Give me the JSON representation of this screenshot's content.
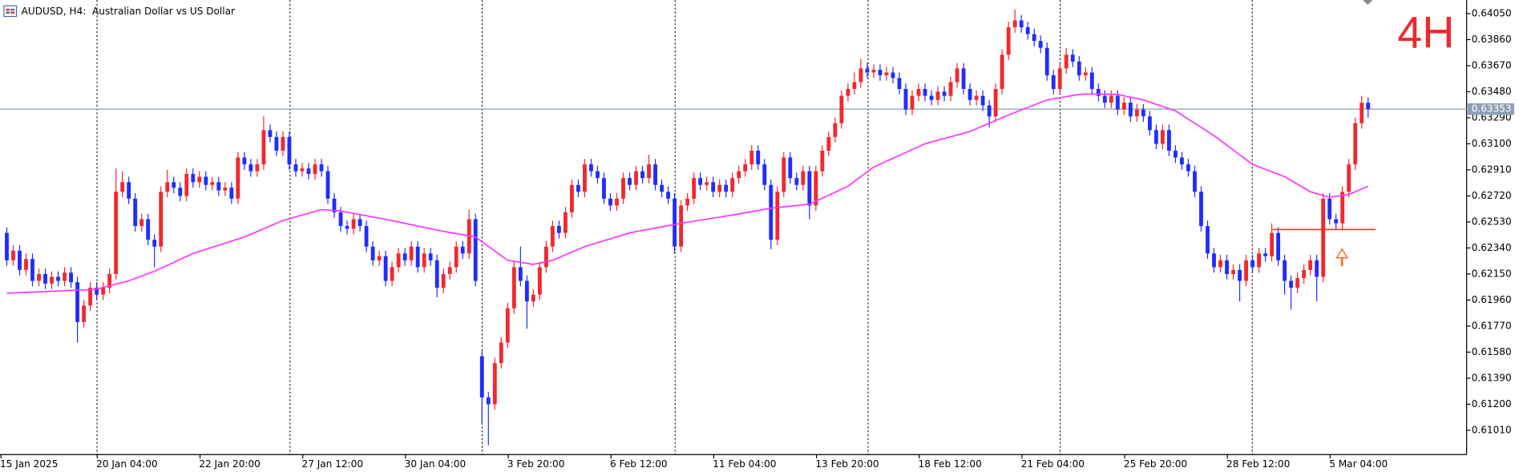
{
  "chart_data": {
    "type": "candlestick",
    "title": "AUDUSD, H4:  Australian Dollar vs US Dollar",
    "annotation": "4H",
    "bull_color": "#f2282d",
    "bear_color": "#1f2dff",
    "categories": [
      "15 Jan 2025",
      null,
      null,
      null,
      null,
      null,
      null,
      null,
      null,
      null,
      null,
      null,
      null,
      null,
      null,
      "20 Jan 04:00",
      null,
      null,
      null,
      null,
      null,
      null,
      null,
      null,
      null,
      null,
      null,
      null,
      null,
      null,
      null,
      "22 Jan 20:00",
      null,
      null,
      null,
      null,
      null,
      null,
      null,
      null,
      null,
      null,
      null,
      null,
      null,
      null,
      null,
      "27 Jan 12:00",
      null,
      null,
      null,
      null,
      null,
      null,
      null,
      null,
      null,
      null,
      null,
      null,
      null,
      null,
      null,
      "30 Jan 04:00",
      null,
      null,
      null,
      null,
      null,
      null,
      null,
      null,
      null,
      null,
      null,
      null,
      null,
      null,
      null,
      "3 Feb 20:00",
      null,
      null,
      null,
      null,
      null,
      null,
      null,
      null,
      null,
      null,
      null,
      null,
      null,
      null,
      null,
      "6 Feb 12:00",
      null,
      null,
      null,
      null,
      null,
      null,
      null,
      null,
      null,
      null,
      null,
      null,
      null,
      null,
      null,
      "11 Feb 04:00",
      null,
      null,
      null,
      null,
      null,
      null,
      null,
      null,
      null,
      null,
      null,
      null,
      null,
      null,
      null,
      "13 Feb 20:00",
      null,
      null,
      null,
      null,
      null,
      null,
      null,
      null,
      null,
      null,
      null,
      null,
      null,
      null,
      null,
      "18 Feb 12:00",
      null,
      null,
      null,
      null,
      null,
      null,
      null,
      null,
      null,
      null,
      null,
      null,
      null,
      null,
      null,
      "21 Feb 04:00",
      null,
      null,
      null,
      null,
      null,
      null,
      null,
      null,
      null,
      null,
      null,
      null,
      null,
      null,
      null,
      "25 Feb 20:00",
      null,
      null,
      null,
      null,
      null,
      null,
      null,
      null,
      null,
      null,
      null,
      null,
      null,
      null,
      null,
      "28 Feb 12:00",
      null,
      null,
      null,
      null,
      null,
      null,
      null,
      null,
      null,
      null,
      null,
      null,
      null,
      null,
      null,
      "5 Mar 04:00",
      null,
      null,
      null,
      null,
      null
    ],
    "open": [
      0.6245,
      0.6225,
      0.6232,
      0.6218,
      0.6226,
      0.621,
      0.6215,
      0.6208,
      0.6213,
      0.621,
      0.6216,
      0.6209,
      0.618,
      0.6192,
      0.6205,
      0.62,
      0.6205,
      0.6215,
      0.6275,
      0.6282,
      0.627,
      0.625,
      0.6255,
      0.624,
      0.6235,
      0.6275,
      0.6282,
      0.6278,
      0.6272,
      0.6288,
      0.6282,
      0.6286,
      0.628,
      0.6282,
      0.6276,
      0.6278,
      0.627,
      0.63,
      0.6295,
      0.629,
      0.6295,
      0.632,
      0.6315,
      0.6305,
      0.6315,
      0.6295,
      0.629,
      0.6292,
      0.6288,
      0.6295,
      0.629,
      0.627,
      0.626,
      0.625,
      0.6248,
      0.6255,
      0.625,
      0.6235,
      0.6225,
      0.6228,
      0.621,
      0.622,
      0.623,
      0.6225,
      0.6235,
      0.622,
      0.623,
      0.6225,
      0.6205,
      0.6215,
      0.622,
      0.6235,
      0.623,
      0.6255,
      0.6155,
      0.6125,
      0.612,
      0.615,
      0.6165,
      0.619,
      0.622,
      0.621,
      0.6195,
      0.62,
      0.622,
      0.6235,
      0.625,
      0.6245,
      0.626,
      0.628,
      0.6275,
      0.6295,
      0.629,
      0.6285,
      0.627,
      0.6265,
      0.627,
      0.6285,
      0.628,
      0.629,
      0.6285,
      0.6295,
      0.628,
      0.6275,
      0.627,
      0.6235,
      0.6265,
      0.627,
      0.6285,
      0.628,
      0.6282,
      0.6275,
      0.628,
      0.6275,
      0.6285,
      0.629,
      0.6295,
      0.6305,
      0.6295,
      0.628,
      0.624,
      0.6275,
      0.63,
      0.6285,
      0.628,
      0.629,
      0.6265,
      0.629,
      0.6305,
      0.6315,
      0.6325,
      0.6345,
      0.635,
      0.6355,
      0.6365,
      0.6362,
      0.6364,
      0.636,
      0.6362,
      0.6358,
      0.635,
      0.6335,
      0.6345,
      0.635,
      0.6345,
      0.6342,
      0.6348,
      0.6345,
      0.6355,
      0.6365,
      0.635,
      0.6342,
      0.6345,
      0.6338,
      0.633,
      0.635,
      0.6375,
      0.6395,
      0.64,
      0.6395,
      0.639,
      0.6385,
      0.638,
      0.636,
      0.635,
      0.6365,
      0.6375,
      0.637,
      0.636,
      0.6362,
      0.635,
      0.6345,
      0.634,
      0.6345,
      0.6335,
      0.634,
      0.633,
      0.6335,
      0.633,
      0.632,
      0.631,
      0.632,
      0.6305,
      0.63,
      0.6295,
      0.629,
      0.6275,
      0.625,
      0.623,
      0.622,
      0.6225,
      0.6215,
      0.6218,
      0.621,
      0.6225,
      0.622,
      0.623,
      0.6228,
      0.6245,
      0.6225,
      0.621,
      0.6205,
      0.6212,
      0.6218,
      0.6225,
      0.6213,
      0.627,
      0.6255,
      0.6252,
      0.6275,
      0.6295,
      0.6325,
      0.634
    ],
    "high": [
      0.6249,
      0.6236,
      0.6236,
      0.623,
      0.623,
      0.6219,
      0.6219,
      0.6217,
      0.6217,
      0.622,
      0.622,
      0.6213,
      0.6196,
      0.6209,
      0.6209,
      0.6209,
      0.6219,
      0.6292,
      0.629,
      0.6286,
      0.6274,
      0.6259,
      0.6259,
      0.6244,
      0.6279,
      0.6291,
      0.6286,
      0.6282,
      0.6292,
      0.6292,
      0.629,
      0.629,
      0.6286,
      0.6286,
      0.6282,
      0.6282,
      0.6304,
      0.6304,
      0.6299,
      0.6299,
      0.633,
      0.6324,
      0.6319,
      0.6319,
      0.6319,
      0.6299,
      0.6296,
      0.6296,
      0.6299,
      0.6299,
      0.6294,
      0.6274,
      0.6264,
      0.6254,
      0.6259,
      0.6259,
      0.6254,
      0.6239,
      0.6232,
      0.6232,
      0.6224,
      0.6234,
      0.6234,
      0.6239,
      0.6239,
      0.6234,
      0.6234,
      0.6229,
      0.6219,
      0.6224,
      0.6239,
      0.6239,
      0.6262,
      0.6259,
      0.6159,
      0.6129,
      0.6154,
      0.6169,
      0.6194,
      0.6224,
      0.6235,
      0.6214,
      0.6204,
      0.6224,
      0.6239,
      0.6254,
      0.6254,
      0.6264,
      0.6284,
      0.6284,
      0.6299,
      0.6299,
      0.6294,
      0.6289,
      0.6274,
      0.6274,
      0.6289,
      0.6289,
      0.6294,
      0.6294,
      0.6302,
      0.6299,
      0.6284,
      0.6279,
      0.6274,
      0.6269,
      0.6274,
      0.6289,
      0.6289,
      0.6286,
      0.6286,
      0.6284,
      0.6284,
      0.6289,
      0.6294,
      0.6299,
      0.6309,
      0.6309,
      0.6299,
      0.6284,
      0.6279,
      0.6304,
      0.6304,
      0.6289,
      0.6294,
      0.6294,
      0.6294,
      0.6309,
      0.6319,
      0.6329,
      0.6349,
      0.6354,
      0.6362,
      0.6372,
      0.6369,
      0.6368,
      0.6368,
      0.6366,
      0.6366,
      0.6362,
      0.6354,
      0.6349,
      0.6354,
      0.6354,
      0.6349,
      0.6352,
      0.6352,
      0.6359,
      0.6369,
      0.6369,
      0.6354,
      0.6349,
      0.6349,
      0.6342,
      0.6354,
      0.6379,
      0.6399,
      0.6408,
      0.6404,
      0.6399,
      0.6394,
      0.6389,
      0.6384,
      0.6364,
      0.6369,
      0.638,
      0.6379,
      0.6374,
      0.6366,
      0.6366,
      0.6354,
      0.6349,
      0.6349,
      0.6349,
      0.6344,
      0.6344,
      0.6339,
      0.6339,
      0.6334,
      0.6324,
      0.6324,
      0.6324,
      0.6309,
      0.6304,
      0.6299,
      0.6294,
      0.6279,
      0.6254,
      0.6234,
      0.6229,
      0.6229,
      0.6222,
      0.6222,
      0.6229,
      0.6229,
      0.6234,
      0.6234,
      0.6252,
      0.6249,
      0.6229,
      0.6214,
      0.6216,
      0.6222,
      0.6229,
      0.6229,
      0.6274,
      0.6274,
      0.6259,
      0.6279,
      0.6299,
      0.6329,
      0.6345,
      0.6344
    ],
    "low": [
      0.6221,
      0.6221,
      0.6214,
      0.6214,
      0.6206,
      0.6206,
      0.6204,
      0.6204,
      0.6206,
      0.6206,
      0.6205,
      0.6165,
      0.6176,
      0.6188,
      0.6196,
      0.6196,
      0.6201,
      0.6211,
      0.6271,
      0.6266,
      0.6246,
      0.6246,
      0.6236,
      0.622,
      0.6231,
      0.6271,
      0.6274,
      0.6268,
      0.6268,
      0.6278,
      0.6278,
      0.6276,
      0.6276,
      0.6272,
      0.6272,
      0.6266,
      0.6266,
      0.6291,
      0.6286,
      0.6286,
      0.6291,
      0.6311,
      0.6301,
      0.6301,
      0.6291,
      0.6286,
      0.6286,
      0.6284,
      0.6284,
      0.6286,
      0.6266,
      0.6256,
      0.6246,
      0.6244,
      0.6244,
      0.6246,
      0.6231,
      0.6221,
      0.6221,
      0.6206,
      0.6206,
      0.6216,
      0.6221,
      0.6221,
      0.6216,
      0.6216,
      0.6221,
      0.6198,
      0.6201,
      0.6211,
      0.6216,
      0.6226,
      0.6226,
      0.6206,
      0.6105,
      0.609,
      0.6116,
      0.6146,
      0.6161,
      0.6186,
      0.6206,
      0.6175,
      0.6191,
      0.6196,
      0.6216,
      0.6231,
      0.6241,
      0.6241,
      0.6256,
      0.6271,
      0.6271,
      0.6286,
      0.6281,
      0.6266,
      0.6261,
      0.6261,
      0.6266,
      0.6276,
      0.6276,
      0.6281,
      0.6281,
      0.6276,
      0.6271,
      0.6266,
      0.623,
      0.6231,
      0.6261,
      0.6266,
      0.6276,
      0.6276,
      0.6271,
      0.6271,
      0.6271,
      0.6271,
      0.6281,
      0.6286,
      0.6291,
      0.6291,
      0.6276,
      0.6233,
      0.6236,
      0.6271,
      0.6281,
      0.6276,
      0.6276,
      0.6255,
      0.6261,
      0.6286,
      0.6301,
      0.6311,
      0.6321,
      0.6341,
      0.6346,
      0.6351,
      0.6358,
      0.6358,
      0.6356,
      0.6356,
      0.6354,
      0.6346,
      0.6331,
      0.6331,
      0.6341,
      0.6341,
      0.6338,
      0.6338,
      0.6341,
      0.6341,
      0.6351,
      0.6346,
      0.6338,
      0.6338,
      0.6334,
      0.6322,
      0.6326,
      0.6346,
      0.6371,
      0.6391,
      0.6391,
      0.6386,
      0.6381,
      0.6376,
      0.6356,
      0.6346,
      0.6346,
      0.6361,
      0.6366,
      0.6356,
      0.6356,
      0.6346,
      0.6341,
      0.6336,
      0.6336,
      0.6331,
      0.6331,
      0.6326,
      0.6326,
      0.6326,
      0.6316,
      0.6306,
      0.6306,
      0.6301,
      0.6296,
      0.6291,
      0.6286,
      0.6271,
      0.6246,
      0.6226,
      0.6216,
      0.6216,
      0.6211,
      0.6211,
      0.6195,
      0.6206,
      0.6216,
      0.6216,
      0.6224,
      0.6224,
      0.6221,
      0.62,
      0.6189,
      0.6201,
      0.6208,
      0.6214,
      0.6195,
      0.6209,
      0.6251,
      0.6248,
      0.6248,
      0.6271,
      0.6291,
      0.6321,
      0.6329
    ],
    "close": [
      0.6225,
      0.6232,
      0.6218,
      0.6226,
      0.621,
      0.6215,
      0.6208,
      0.6213,
      0.621,
      0.6216,
      0.6209,
      0.618,
      0.6192,
      0.6205,
      0.62,
      0.6205,
      0.6215,
      0.6275,
      0.6282,
      0.627,
      0.625,
      0.6255,
      0.624,
      0.6235,
      0.6275,
      0.6282,
      0.6278,
      0.6272,
      0.6288,
      0.6282,
      0.6286,
      0.628,
      0.6282,
      0.6276,
      0.6278,
      0.627,
      0.63,
      0.6295,
      0.629,
      0.6295,
      0.632,
      0.6315,
      0.6305,
      0.6315,
      0.6295,
      0.629,
      0.6292,
      0.6288,
      0.6295,
      0.629,
      0.627,
      0.626,
      0.625,
      0.6248,
      0.6255,
      0.625,
      0.6235,
      0.6225,
      0.6228,
      0.621,
      0.622,
      0.623,
      0.6225,
      0.6235,
      0.622,
      0.623,
      0.6225,
      0.6205,
      0.6215,
      0.622,
      0.6235,
      0.623,
      0.6255,
      0.621,
      0.6125,
      0.612,
      0.615,
      0.6165,
      0.619,
      0.622,
      0.621,
      0.6195,
      0.62,
      0.622,
      0.6235,
      0.625,
      0.6245,
      0.626,
      0.628,
      0.6275,
      0.6295,
      0.629,
      0.6285,
      0.627,
      0.6265,
      0.627,
      0.6285,
      0.628,
      0.629,
      0.6285,
      0.6295,
      0.628,
      0.6275,
      0.627,
      0.6235,
      0.6265,
      0.627,
      0.6285,
      0.628,
      0.6282,
      0.6275,
      0.628,
      0.6275,
      0.6285,
      0.629,
      0.6295,
      0.6305,
      0.6295,
      0.628,
      0.624,
      0.6275,
      0.63,
      0.6285,
      0.628,
      0.629,
      0.6265,
      0.629,
      0.6305,
      0.6315,
      0.6325,
      0.6345,
      0.635,
      0.6355,
      0.6365,
      0.6362,
      0.6364,
      0.636,
      0.6362,
      0.6358,
      0.635,
      0.6335,
      0.6345,
      0.635,
      0.6345,
      0.6342,
      0.6348,
      0.6345,
      0.6355,
      0.6365,
      0.635,
      0.6342,
      0.6345,
      0.6338,
      0.633,
      0.635,
      0.6375,
      0.6395,
      0.64,
      0.6395,
      0.639,
      0.6385,
      0.638,
      0.636,
      0.635,
      0.6365,
      0.6375,
      0.637,
      0.636,
      0.6362,
      0.635,
      0.6345,
      0.634,
      0.6345,
      0.6335,
      0.634,
      0.633,
      0.6335,
      0.633,
      0.632,
      0.631,
      0.632,
      0.6305,
      0.63,
      0.6295,
      0.629,
      0.6275,
      0.625,
      0.623,
      0.622,
      0.6225,
      0.6215,
      0.6218,
      0.621,
      0.6225,
      0.622,
      0.623,
      0.6228,
      0.6245,
      0.6225,
      0.621,
      0.6205,
      0.6212,
      0.6218,
      0.6225,
      0.6213,
      0.627,
      0.6255,
      0.6252,
      0.6275,
      0.6295,
      0.6325,
      0.634,
      0.63353
    ],
    "ma": {
      "color": "#ff33ff",
      "values": [
        0.6201,
        0.62012,
        0.62014,
        0.62016,
        0.62018,
        0.6202,
        0.62022,
        0.62024,
        0.62026,
        0.62028,
        0.6203,
        0.62032,
        0.62034,
        0.62037,
        0.6204,
        0.62052,
        0.62064,
        0.62076,
        0.62088,
        0.621,
        0.62118,
        0.62135,
        0.62153,
        0.6217,
        0.62192,
        0.62213,
        0.62235,
        0.62257,
        0.62278,
        0.623,
        0.62315,
        0.6233,
        0.62345,
        0.6236,
        0.62375,
        0.6239,
        0.62405,
        0.6242,
        0.6244,
        0.6246,
        0.6248,
        0.625,
        0.6252,
        0.6254,
        0.62553,
        0.62567,
        0.6258,
        0.62593,
        0.62607,
        0.6262,
        0.62617,
        0.62613,
        0.6261,
        0.62601,
        0.62593,
        0.62584,
        0.62575,
        0.62566,
        0.62558,
        0.62549,
        0.6254,
        0.6253,
        0.6252,
        0.6251,
        0.625,
        0.6249,
        0.6248,
        0.6247,
        0.62462,
        0.62453,
        0.62445,
        0.62437,
        0.62428,
        0.6242,
        0.62386,
        0.62352,
        0.62318,
        0.62284,
        0.6225,
        0.62243,
        0.62235,
        0.62228,
        0.6222,
        0.6223,
        0.6224,
        0.6225,
        0.6227,
        0.6229,
        0.6231,
        0.6233,
        0.6235,
        0.62364,
        0.62379,
        0.62393,
        0.62407,
        0.62421,
        0.62436,
        0.6245,
        0.62459,
        0.62468,
        0.62476,
        0.62485,
        0.62494,
        0.62503,
        0.62511,
        0.6252,
        0.62528,
        0.62535,
        0.62543,
        0.6255,
        0.62558,
        0.62565,
        0.62573,
        0.6258,
        0.62588,
        0.62597,
        0.62605,
        0.62613,
        0.62622,
        0.6263,
        0.62635,
        0.6264,
        0.62645,
        0.6265,
        0.62655,
        0.6266,
        0.62682,
        0.62703,
        0.62725,
        0.62747,
        0.62768,
        0.6279,
        0.62825,
        0.6286,
        0.62895,
        0.6293,
        0.62951,
        0.62973,
        0.62994,
        0.63015,
        0.63036,
        0.63058,
        0.63079,
        0.631,
        0.63113,
        0.63126,
        0.63139,
        0.63151,
        0.63164,
        0.63177,
        0.6319,
        0.6321,
        0.6323,
        0.6325,
        0.6327,
        0.6329,
        0.6331,
        0.63328,
        0.63347,
        0.63365,
        0.63383,
        0.63402,
        0.6342,
        0.63428,
        0.63436,
        0.63444,
        0.63452,
        0.6346,
        0.63462,
        0.63463,
        0.63463,
        0.63462,
        0.63461,
        0.6346,
        0.6345,
        0.6344,
        0.6343,
        0.6342,
        0.63404,
        0.63388,
        0.63372,
        0.63356,
        0.6334,
        0.6331,
        0.6328,
        0.6325,
        0.6322,
        0.6319,
        0.6316,
        0.63125,
        0.6309,
        0.63055,
        0.6302,
        0.62985,
        0.6295,
        0.62932,
        0.62914,
        0.62896,
        0.62878,
        0.6286,
        0.62833,
        0.62805,
        0.62778,
        0.6275,
        0.62737,
        0.62723,
        0.6271,
        0.62717,
        0.62723,
        0.6273,
        0.6275,
        0.6277,
        0.6279
      ]
    },
    "current_price": {
      "value": 0.63353,
      "label": "0.63353"
    },
    "level_line": {
      "value": 0.62475,
      "color": "#ff3b1f"
    },
    "ylim": [
      0.60833,
      0.64149
    ],
    "yticks": [
      {
        "value": 0.6405,
        "label": "0.64050"
      },
      {
        "value": 0.6386,
        "label": "0.63860"
      },
      {
        "value": 0.6367,
        "label": "0.63670"
      },
      {
        "value": 0.6348,
        "label": "0.63480"
      },
      {
        "value": 0.6329,
        "label": "0.63290"
      },
      {
        "value": 0.631,
        "label": "0.63100"
      },
      {
        "value": 0.6291,
        "label": "0.62910"
      },
      {
        "value": 0.6272,
        "label": "0.62720"
      },
      {
        "value": 0.6253,
        "label": "0.62530"
      },
      {
        "value": 0.6234,
        "label": "0.62340"
      },
      {
        "value": 0.6215,
        "label": "0.62150"
      },
      {
        "value": 0.6196,
        "label": "0.61960"
      },
      {
        "value": 0.6177,
        "label": "0.61770"
      },
      {
        "value": 0.6158,
        "label": "0.61580"
      },
      {
        "value": 0.6139,
        "label": "0.61390"
      },
      {
        "value": 0.612,
        "label": "0.61200"
      },
      {
        "value": 0.6101,
        "label": "0.61010"
      }
    ]
  }
}
